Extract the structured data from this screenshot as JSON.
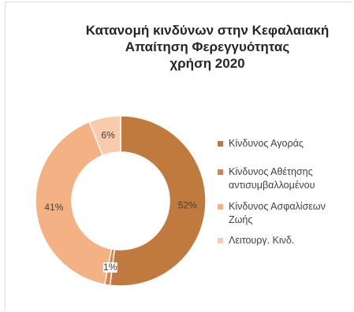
{
  "chart_data": {
    "type": "donut",
    "title_lines": [
      "Κατανομή κινδύνων στην  Κεφαλαιακή",
      "Απαίτηση Φερεγγυότητας",
      "χρήση 2020"
    ],
    "categories": [
      "Κίνδυνος Αγοράς",
      "Κίνδυνος Αθέτησης αντισυμβαλλομένου",
      "Κίνδυνος Ασφαλίσεων Ζωής",
      "Λειτουργ. Κινδ."
    ],
    "values": [
      52,
      1,
      41,
      6
    ],
    "data_labels": [
      "52%",
      "1%",
      "41%",
      "6%"
    ],
    "colors": [
      "#c07a3e",
      "#d9834a",
      "#f4b183",
      "#f8cbad"
    ],
    "legend_position": "right"
  }
}
